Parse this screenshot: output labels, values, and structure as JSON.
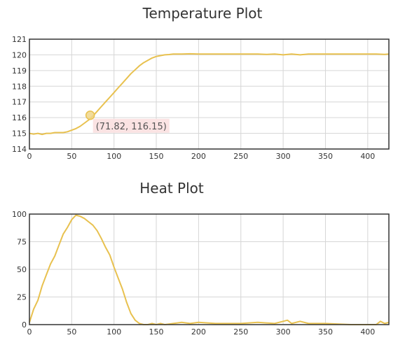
{
  "colors": {
    "series": "#e8c14f",
    "grid": "#d6d6d6",
    "frame": "#333333",
    "tooltip_bg": "#fbe3e3"
  },
  "tooltip": {
    "text": "(71.82, 116.15)",
    "x": 71.82,
    "y": 116.15
  },
  "chart_data": [
    {
      "type": "line",
      "title": "Temperature Plot",
      "xlabel": "",
      "ylabel": "",
      "xlim": [
        0,
        425
      ],
      "ylim": [
        114,
        121
      ],
      "x_ticks": [
        0,
        50,
        100,
        150,
        200,
        250,
        300,
        350,
        400
      ],
      "y_ticks": [
        114,
        115,
        116,
        117,
        118,
        119,
        120,
        121
      ],
      "grid": true,
      "series": [
        {
          "x": [
            0,
            5,
            10,
            15,
            20,
            25,
            30,
            35,
            40,
            45,
            50,
            55,
            60,
            65,
            70,
            75,
            80,
            85,
            90,
            95,
            100,
            105,
            110,
            115,
            120,
            125,
            130,
            135,
            140,
            145,
            150,
            155,
            160,
            165,
            170,
            175,
            180,
            190,
            200,
            220,
            250,
            270,
            280,
            290,
            300,
            310,
            320,
            330,
            340,
            360,
            380,
            400,
            410,
            420,
            425
          ],
          "y": [
            115.0,
            114.95,
            115.0,
            114.93,
            115.0,
            115.0,
            115.05,
            115.05,
            115.05,
            115.1,
            115.2,
            115.3,
            115.45,
            115.65,
            115.85,
            116.1,
            116.4,
            116.7,
            117.0,
            117.3,
            117.6,
            117.9,
            118.2,
            118.5,
            118.8,
            119.05,
            119.3,
            119.5,
            119.65,
            119.8,
            119.9,
            119.95,
            120.0,
            120.02,
            120.05,
            120.05,
            120.05,
            120.07,
            120.05,
            120.05,
            120.05,
            120.05,
            120.03,
            120.05,
            120.0,
            120.05,
            120.0,
            120.05,
            120.05,
            120.05,
            120.05,
            120.05,
            120.05,
            120.03,
            120.05
          ]
        }
      ]
    },
    {
      "type": "line",
      "title": "Heat Plot",
      "xlabel": "",
      "ylabel": "",
      "xlim": [
        0,
        425
      ],
      "ylim": [
        0,
        100
      ],
      "x_ticks": [
        0,
        50,
        100,
        150,
        200,
        250,
        300,
        350,
        400
      ],
      "y_ticks": [
        0,
        25,
        50,
        75,
        100
      ],
      "grid": true,
      "series": [
        {
          "x": [
            0,
            5,
            10,
            15,
            20,
            25,
            30,
            35,
            40,
            45,
            50,
            55,
            60,
            65,
            70,
            75,
            80,
            85,
            90,
            95,
            100,
            105,
            110,
            115,
            120,
            125,
            130,
            135,
            140,
            145,
            150,
            155,
            160,
            170,
            180,
            190,
            200,
            220,
            250,
            270,
            290,
            300,
            305,
            310,
            320,
            330,
            350,
            380,
            400,
            410,
            415,
            420,
            425
          ],
          "y": [
            2,
            14,
            22,
            35,
            45,
            55,
            62,
            72,
            82,
            88,
            95,
            99,
            98,
            96,
            93,
            90,
            85,
            78,
            70,
            63,
            52,
            42,
            32,
            20,
            10,
            4,
            1,
            0,
            0,
            1,
            0,
            1,
            0,
            1,
            2,
            1,
            2,
            1,
            1,
            2,
            1,
            3,
            4,
            1,
            3,
            1,
            1,
            0,
            0,
            0,
            3,
            1,
            2
          ]
        }
      ]
    }
  ]
}
